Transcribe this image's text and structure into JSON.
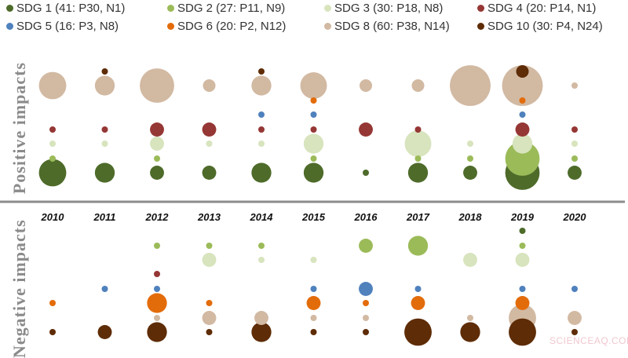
{
  "chart_data": {
    "type": "scatter",
    "subtype": "bubble",
    "years": [
      "2010",
      "2011",
      "2012",
      "2013",
      "2014",
      "2015",
      "2016",
      "2017",
      "2018",
      "2019",
      "2020"
    ],
    "panels": [
      {
        "key": "positive",
        "label": "Positive impacts"
      },
      {
        "key": "negative",
        "label": "Negative impacts"
      }
    ],
    "series": [
      {
        "name": "SDG 1 (41: P30, N1)",
        "color": "#4e6b2a",
        "positive": [
          19,
          10,
          5,
          5,
          10,
          10,
          1,
          10,
          5,
          30,
          5
        ],
        "negative": [
          0,
          0,
          0,
          0,
          0,
          0,
          0,
          0,
          0,
          1,
          0
        ]
      },
      {
        "name": "SDG 2 (27: P11, N9)",
        "color": "#9bbb59",
        "positive": [
          1,
          0,
          1,
          0,
          0,
          1,
          0,
          1,
          1,
          30,
          1
        ],
        "negative": [
          0,
          0,
          1,
          1,
          1,
          0,
          5,
          10,
          0,
          1,
          0
        ]
      },
      {
        "name": "SDG 3 (30: P18, N8)",
        "color": "#d7e4bd",
        "positive": [
          1,
          1,
          5,
          1,
          1,
          10,
          0,
          18,
          1,
          10,
          1
        ],
        "negative": [
          0,
          0,
          0,
          5,
          1,
          1,
          0,
          0,
          5,
          5,
          0
        ]
      },
      {
        "name": "SDG 4 (20: P14, N1)",
        "color": "#953735",
        "positive": [
          1,
          1,
          5,
          5,
          1,
          1,
          5,
          1,
          0,
          5,
          1
        ],
        "negative": [
          0,
          0,
          1,
          0,
          0,
          0,
          0,
          0,
          0,
          0,
          0
        ]
      },
      {
        "name": "SDG 5 (16: P3, N8)",
        "color": "#4f81bd",
        "positive": [
          0,
          0,
          0,
          0,
          1,
          1,
          0,
          0,
          0,
          1,
          0
        ],
        "negative": [
          0,
          1,
          1,
          0,
          0,
          1,
          5,
          1,
          0,
          1,
          1
        ]
      },
      {
        "name": "SDG 6 (20: P2, N12)",
        "color": "#e36c0a",
        "positive": [
          0,
          0,
          0,
          0,
          0,
          1,
          0,
          0,
          0,
          1,
          0
        ],
        "negative": [
          1,
          0,
          10,
          1,
          0,
          5,
          1,
          5,
          0,
          5,
          0
        ]
      },
      {
        "name": "SDG 8 (60: P38, N14)",
        "color": "#d2b9a2",
        "positive": [
          19,
          10,
          30,
          4,
          10,
          18,
          4,
          4,
          42,
          42,
          1
        ],
        "negative": [
          0,
          0,
          1,
          5,
          5,
          1,
          1,
          0,
          1,
          19,
          5
        ]
      },
      {
        "name": "SDG 10 (30: P4, N24)",
        "color": "#5e2c06",
        "positive": [
          0,
          1,
          0,
          0,
          1,
          0,
          0,
          0,
          0,
          4,
          0
        ],
        "negative": [
          1,
          5,
          10,
          1,
          10,
          1,
          1,
          19,
          10,
          19,
          1
        ]
      }
    ],
    "legend_placement": "top",
    "grid": false
  },
  "watermark": "SCIENCEAQ.COM"
}
